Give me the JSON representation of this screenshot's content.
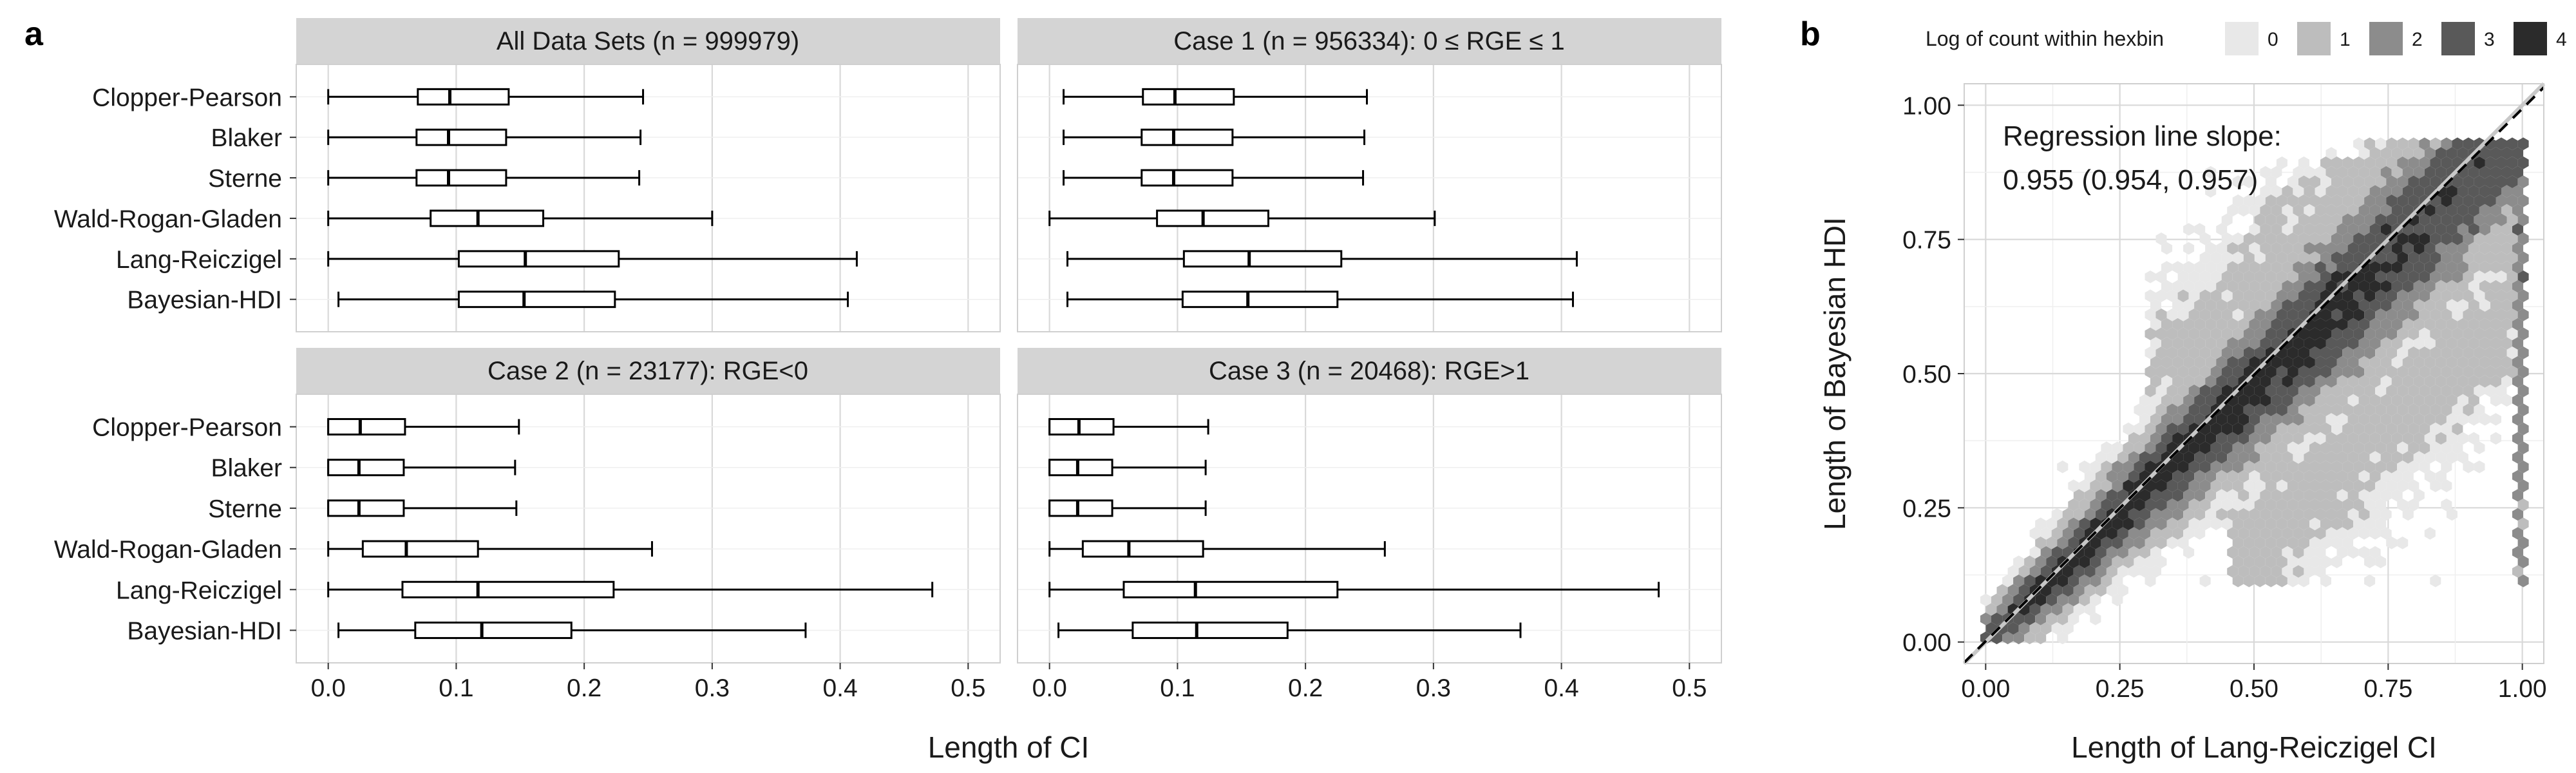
{
  "panel_labels": {
    "a": "a",
    "b": "b"
  },
  "chart_data": [
    {
      "type": "boxplot",
      "panel": "a",
      "xlabel": "Length of CI",
      "xlim": [
        -0.025,
        0.525
      ],
      "xticks": [
        0.0,
        0.1,
        0.2,
        0.3,
        0.4,
        0.5
      ],
      "xtick_labels": [
        "0.0",
        "0.1",
        "0.2",
        "0.3",
        "0.4",
        "0.5"
      ],
      "categories": [
        "Clopper-Pearson",
        "Blaker",
        "Sterne",
        "Wald-Rogan-Gladen",
        "Lang-Reiczigel",
        "Bayesian-HDI"
      ],
      "facets": [
        {
          "title": "All Data Sets (n = 999979)",
          "boxes": [
            {
              "min": 0.0,
              "q1": 0.07,
              "median": 0.095,
              "q3": 0.141,
              "max": 0.246
            },
            {
              "min": 0.0,
              "q1": 0.069,
              "median": 0.094,
              "q3": 0.139,
              "max": 0.244
            },
            {
              "min": 0.0,
              "q1": 0.069,
              "median": 0.094,
              "q3": 0.139,
              "max": 0.243
            },
            {
              "min": 0.0,
              "q1": 0.08,
              "median": 0.117,
              "q3": 0.168,
              "max": 0.3
            },
            {
              "min": 0.0,
              "q1": 0.102,
              "median": 0.154,
              "q3": 0.227,
              "max": 0.413
            },
            {
              "min": 0.008,
              "q1": 0.102,
              "median": 0.153,
              "q3": 0.224,
              "max": 0.406
            }
          ]
        },
        {
          "title": "Case 1 (n = 956334): 0 ≤ RGE ≤ 1",
          "boxes": [
            {
              "min": 0.011,
              "q1": 0.073,
              "median": 0.098,
              "q3": 0.144,
              "max": 0.248
            },
            {
              "min": 0.011,
              "q1": 0.072,
              "median": 0.097,
              "q3": 0.143,
              "max": 0.246
            },
            {
              "min": 0.011,
              "q1": 0.072,
              "median": 0.097,
              "q3": 0.143,
              "max": 0.245
            },
            {
              "min": 0.0,
              "q1": 0.084,
              "median": 0.12,
              "q3": 0.171,
              "max": 0.301
            },
            {
              "min": 0.014,
              "q1": 0.105,
              "median": 0.156,
              "q3": 0.228,
              "max": 0.412
            },
            {
              "min": 0.014,
              "q1": 0.104,
              "median": 0.155,
              "q3": 0.225,
              "max": 0.409
            }
          ]
        },
        {
          "title": "Case 2 (n = 23177): RGE<0",
          "boxes": [
            {
              "min": 0.0,
              "q1": 0.0,
              "median": 0.025,
              "q3": 0.06,
              "max": 0.149
            },
            {
              "min": 0.0,
              "q1": 0.0,
              "median": 0.024,
              "q3": 0.059,
              "max": 0.146
            },
            {
              "min": 0.0,
              "q1": 0.0,
              "median": 0.024,
              "q3": 0.059,
              "max": 0.147
            },
            {
              "min": 0.0,
              "q1": 0.027,
              "median": 0.061,
              "q3": 0.117,
              "max": 0.253
            },
            {
              "min": 0.0,
              "q1": 0.058,
              "median": 0.117,
              "q3": 0.223,
              "max": 0.472
            },
            {
              "min": 0.008,
              "q1": 0.068,
              "median": 0.12,
              "q3": 0.19,
              "max": 0.373
            }
          ]
        },
        {
          "title": "Case 3 (n = 20468): RGE>1",
          "boxes": [
            {
              "min": 0.0,
              "q1": 0.0,
              "median": 0.023,
              "q3": 0.05,
              "max": 0.124
            },
            {
              "min": 0.0,
              "q1": 0.0,
              "median": 0.022,
              "q3": 0.049,
              "max": 0.122
            },
            {
              "min": 0.0,
              "q1": 0.0,
              "median": 0.022,
              "q3": 0.049,
              "max": 0.122
            },
            {
              "min": 0.0,
              "q1": 0.026,
              "median": 0.062,
              "q3": 0.12,
              "max": 0.262
            },
            {
              "min": 0.0,
              "q1": 0.058,
              "median": 0.114,
              "q3": 0.225,
              "max": 0.476
            },
            {
              "min": 0.007,
              "q1": 0.065,
              "median": 0.115,
              "q3": 0.186,
              "max": 0.368
            }
          ]
        }
      ]
    },
    {
      "type": "hexbin",
      "panel": "b",
      "xlabel": "Length of Lang-Reiczigel CI",
      "ylabel": "Length of Bayesian HDI",
      "xlim": [
        -0.04,
        1.04
      ],
      "ylim": [
        -0.04,
        1.04
      ],
      "xticks": [
        0.0,
        0.25,
        0.5,
        0.75,
        1.0
      ],
      "yticks": [
        0.0,
        0.25,
        0.5,
        0.75,
        1.0
      ],
      "xtick_labels": [
        "0.00",
        "0.25",
        "0.50",
        "0.75",
        "1.00"
      ],
      "ytick_labels": [
        "0.00",
        "0.25",
        "0.50",
        "0.75",
        "1.00"
      ],
      "legend": {
        "title": "Log of count within hexbin",
        "position": "top",
        "levels": [
          0,
          1,
          2,
          3,
          4
        ],
        "labels": [
          "0",
          "1",
          "2",
          "3",
          "4"
        ],
        "colors": [
          "#e8e8e8",
          "#bdbdbd",
          "#8c8c8c",
          "#595959",
          "#2b2b2b"
        ]
      },
      "annotation": {
        "line1": "Regression line slope:",
        "line2": "0.955 (0.954, 0.957)"
      },
      "identity_line": {
        "slope": 1,
        "intercept": 0,
        "color": "#c8c8c8"
      },
      "regression_line": {
        "slope": 0.955,
        "intercept": 0.0,
        "style": "dashed",
        "color": "#000000"
      }
    }
  ]
}
